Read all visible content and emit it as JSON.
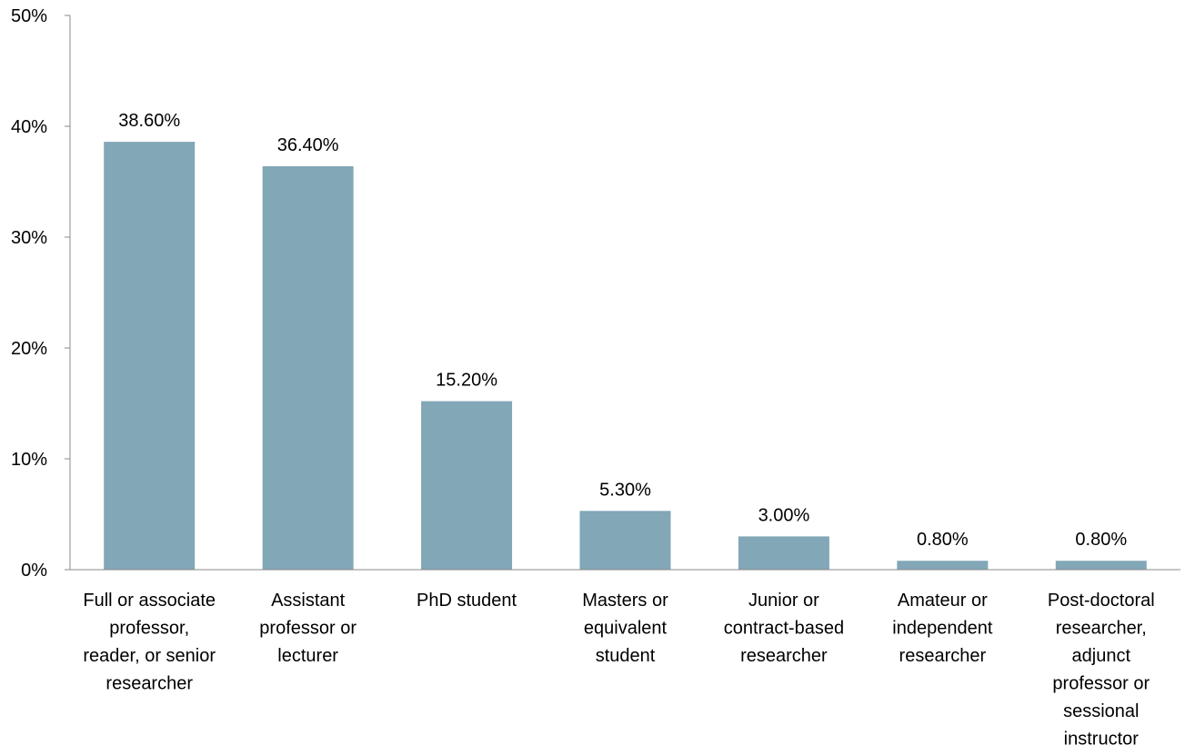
{
  "chart_data": {
    "type": "bar",
    "categories": [
      [
        "Full or associate",
        "professor,",
        "reader, or senior",
        "researcher"
      ],
      [
        "Assistant",
        "professor or",
        "lecturer"
      ],
      [
        "PhD student"
      ],
      [
        "Masters or",
        "equivalent",
        "student"
      ],
      [
        "Junior or",
        "contract-based",
        "researcher"
      ],
      [
        "Amateur or",
        "independent",
        "researcher"
      ],
      [
        "Post-doctoral",
        "researcher,",
        "adjunct",
        "professor or",
        "sessional",
        "instructor"
      ]
    ],
    "values": [
      38.6,
      36.4,
      15.2,
      5.3,
      3.0,
      0.8,
      0.8
    ],
    "data_labels": [
      "38.60%",
      "36.40%",
      "15.20%",
      "5.30%",
      "3.00%",
      "0.80%",
      "0.80%"
    ],
    "y_ticks": [
      0,
      10,
      20,
      30,
      40,
      50
    ],
    "y_tick_labels": [
      "0%",
      "10%",
      "20%",
      "30%",
      "40%",
      "50%"
    ],
    "ylim": [
      0,
      50
    ],
    "bar_color": "#82A7B7",
    "axis_color": "#888888",
    "grid": false,
    "title": "",
    "xlabel": "",
    "ylabel": ""
  }
}
